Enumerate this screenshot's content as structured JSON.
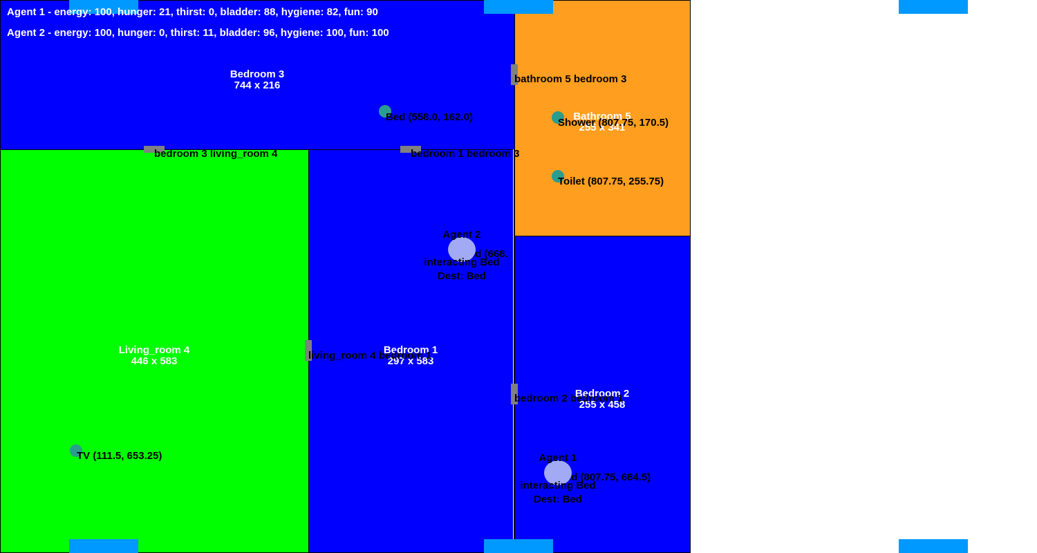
{
  "hud": {
    "agent1_stats": "Agent 1 - energy: 100, hunger: 21, thirst: 0, bladder: 88, hygiene: 82, fun: 90",
    "agent2_stats": "Agent 2 - energy: 100, hunger: 0, thirst: 11, bladder: 96, hygiene: 100, fun: 100"
  },
  "rooms": {
    "bedroom3": {
      "name": "Bedroom 3",
      "size": "744 x 216",
      "color": "#0000ff"
    },
    "bathroom5": {
      "name": "Bathroom 5",
      "size": "255 x 341",
      "color": "#ff9e1f"
    },
    "living_room4": {
      "name": "Living_room 4",
      "size": "446 x 583",
      "color": "#00ff00"
    },
    "bedroom1": {
      "name": "Bedroom 1",
      "size": "297 x 583",
      "color": "#0000ff"
    },
    "bedroom2": {
      "name": "Bedroom 2",
      "size": "255 x 458",
      "color": "#0000ff"
    }
  },
  "doors": {
    "bathroom5_bedroom3": "bathroom 5 bedroom 3",
    "bedroom3_living_room4": "bedroom 3 living_room 4",
    "bedroom1_bedroom3": "bedroom 1 bedroom 3",
    "living_room4_bedroom1": "living_room 4 bedroom 1",
    "bedroom2_bedroom1": "bedroom 2 bedroom 1"
  },
  "objects": {
    "bed_bedroom3": "Bed (558.0, 162.0)",
    "shower": "Shower (807.75, 170.5)",
    "toilet": "Toilet (807.75, 255.75)",
    "tv": "TV (111.5, 653.25)",
    "bed_bedroom1": "Bed (668.",
    "bed_bedroom2": "Bed (807.75, 684.5)"
  },
  "agents": {
    "agent1": {
      "name": "Agent 1",
      "action": "interacting Bed",
      "dest": "Dest: Bed"
    },
    "agent2": {
      "name": "Agent 2",
      "action": "interacting Bed",
      "dest": "Dest: Bed"
    }
  },
  "colors": {
    "marker": "#0099ff",
    "door": "#808080",
    "object": "#2a9d8f",
    "agent": "#a2aaf6"
  }
}
